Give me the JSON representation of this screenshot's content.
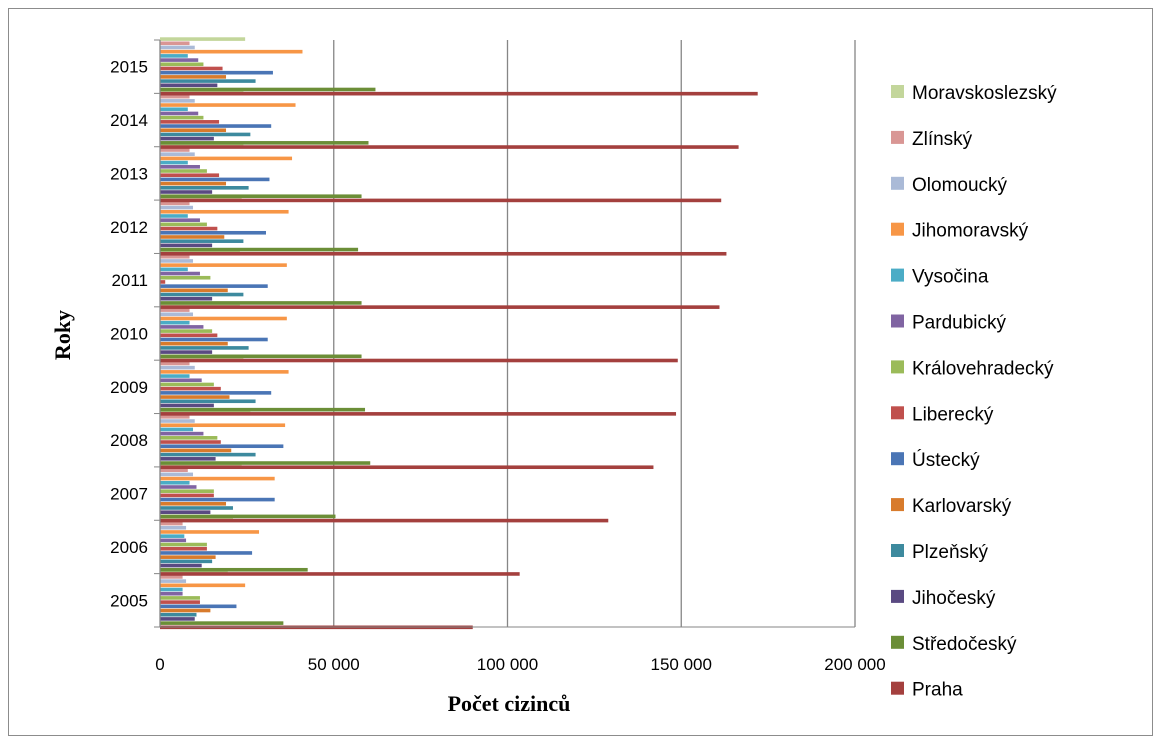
{
  "chart_data": {
    "type": "bar",
    "orientation": "horizontal",
    "xlabel": "Počet cizinců",
    "ylabel": "Roky",
    "xlim": [
      0,
      200000
    ],
    "x_ticks": [
      0,
      50000,
      100000,
      150000,
      200000
    ],
    "x_tick_labels": [
      "0",
      "50 000",
      "100 000",
      "150 000",
      "200 000"
    ],
    "grid": "vertical",
    "legend_position": "right",
    "categories": [
      "2005",
      "2006",
      "2007",
      "2008",
      "2009",
      "2010",
      "2011",
      "2012",
      "2013",
      "2014",
      "2015"
    ],
    "series": [
      {
        "name": "Praha",
        "color": "#a4403e",
        "values": [
          90000,
          103500,
          129000,
          142000,
          148500,
          149000,
          161000,
          163000,
          161500,
          166500,
          172000
        ]
      },
      {
        "name": "Středočeský",
        "color": "#6b8e37",
        "values": [
          35500,
          42500,
          50500,
          60500,
          59000,
          58000,
          58000,
          57000,
          58000,
          60000,
          62000
        ]
      },
      {
        "name": "Jihočeský",
        "color": "#5a4a82",
        "values": [
          10000,
          12000,
          14500,
          16000,
          15500,
          15000,
          15000,
          15000,
          15000,
          15500,
          16500
        ]
      },
      {
        "name": "Plzeňský",
        "color": "#3d8a9e",
        "values": [
          10500,
          15000,
          21000,
          27500,
          27500,
          25500,
          24000,
          24000,
          25500,
          26000,
          27500
        ]
      },
      {
        "name": "Karlovarský",
        "color": "#d87b2c",
        "values": [
          14500,
          16000,
          19000,
          20500,
          20000,
          19500,
          19500,
          18500,
          19000,
          19000,
          19000
        ]
      },
      {
        "name": "Ústecký",
        "color": "#4a75b5",
        "values": [
          22000,
          26500,
          33000,
          35500,
          32000,
          31000,
          31000,
          30500,
          31500,
          32000,
          32500
        ]
      },
      {
        "name": "Liberecký",
        "color": "#c0504d",
        "values": [
          11500,
          13500,
          15500,
          17500,
          17500,
          16500,
          1500,
          16500,
          17000,
          17000,
          18000
        ]
      },
      {
        "name": "Královehradecký",
        "color": "#9bbb59",
        "values": [
          11500,
          13500,
          15500,
          16500,
          15500,
          15000,
          14500,
          13500,
          13500,
          12500,
          12500
        ]
      },
      {
        "name": "Pardubický",
        "color": "#8064a2",
        "values": [
          6500,
          7500,
          10500,
          12500,
          12000,
          12500,
          11500,
          11500,
          11500,
          11000,
          11000
        ]
      },
      {
        "name": "Vysočina",
        "color": "#4bacc6",
        "values": [
          6500,
          7000,
          8500,
          9500,
          8500,
          8500,
          8000,
          8000,
          8000,
          8000,
          8000
        ]
      },
      {
        "name": "Jihomoravský",
        "color": "#f79646",
        "values": [
          24500,
          28500,
          33000,
          36000,
          37000,
          36500,
          36500,
          37000,
          38000,
          39000,
          41000
        ]
      },
      {
        "name": "Olomoucký",
        "color": "#aabad7",
        "values": [
          7500,
          7500,
          9500,
          10000,
          10000,
          9500,
          9500,
          9500,
          10000,
          10000,
          10000
        ]
      },
      {
        "name": "Zlínský",
        "color": "#d99694",
        "values": [
          6500,
          6500,
          8000,
          8500,
          8500,
          8500,
          8500,
          8500,
          8500,
          8500,
          8500
        ]
      },
      {
        "name": "Moravskoslezský",
        "color": "#c3d69b",
        "values": [
          19500,
          21000,
          23500,
          26000,
          24000,
          23000,
          23000,
          23500,
          24000,
          24000,
          24500
        ]
      }
    ]
  }
}
